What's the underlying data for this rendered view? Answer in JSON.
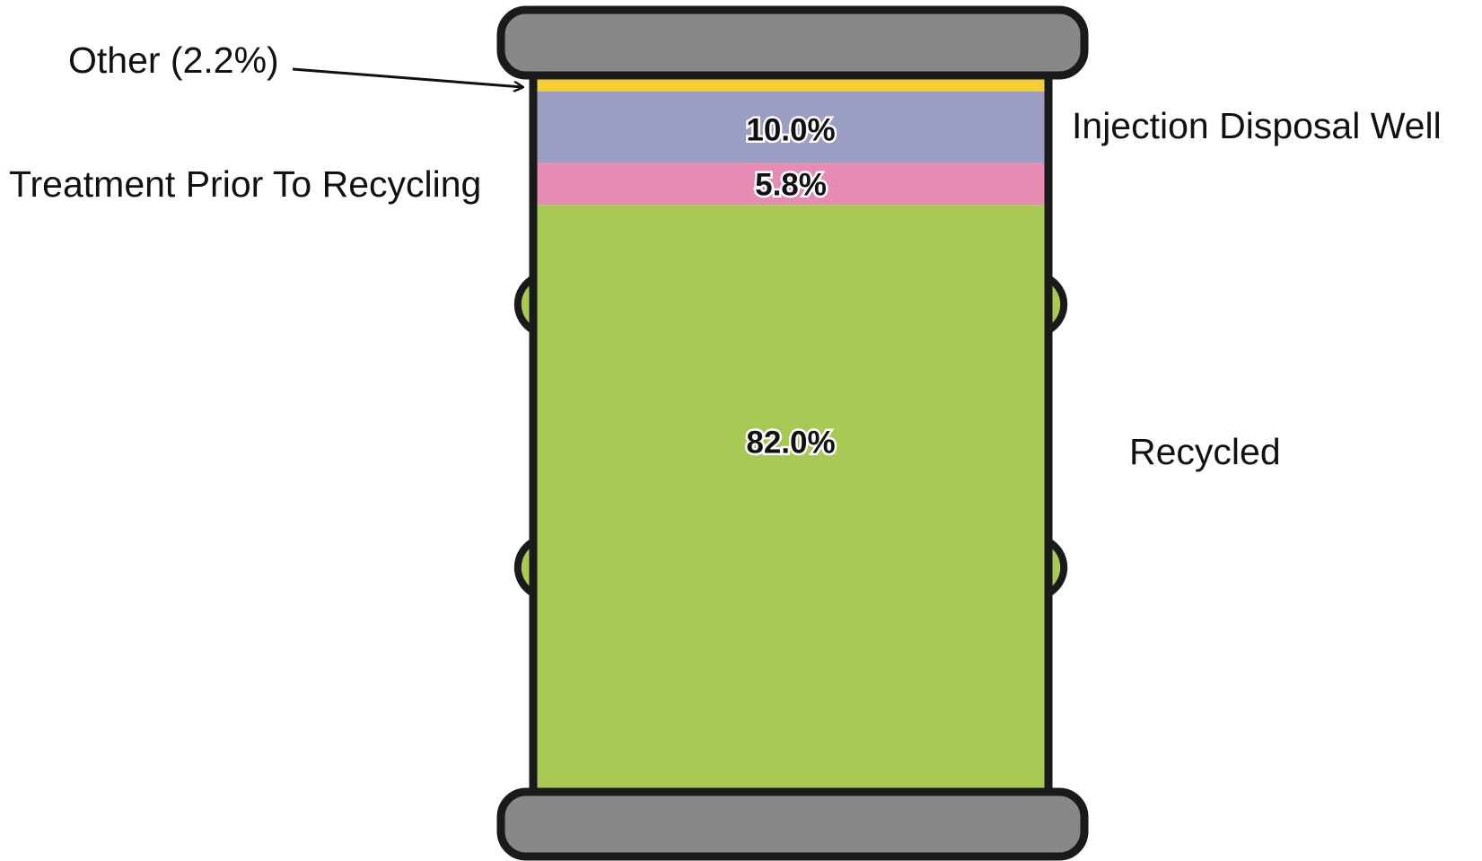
{
  "chart_data": {
    "type": "bar",
    "stacked": true,
    "categories": [
      "Recycled",
      "Treatment Prior To Recycling",
      "Injection Disposal Well",
      "Other"
    ],
    "values": [
      82.0,
      5.8,
      10.0,
      2.2
    ],
    "labels": [
      "Recycled",
      "Treatment Prior To Recycling",
      "Injection Disposal Well",
      "Other (2.2%)"
    ],
    "value_labels": [
      "82.0%",
      "5.8%",
      "10.0%",
      ""
    ],
    "colors": [
      "#a8ca54",
      "#e68bb1",
      "#9b9dc2",
      "#f8cf33"
    ],
    "units": "%",
    "title": "",
    "xlabel": "",
    "ylabel": ""
  }
}
